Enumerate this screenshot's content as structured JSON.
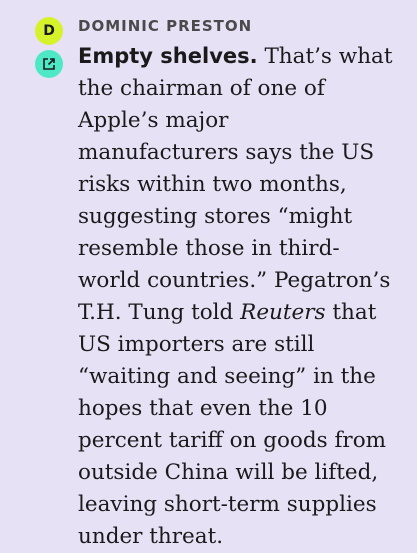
{
  "author": {
    "initial": "D",
    "name": "DOMINIC PRESTON"
  },
  "icons": {
    "author": "author-initial-badge",
    "link": "external-link-icon"
  },
  "colors": {
    "background": "#e6e1f5",
    "author_badge": "#d6f22a",
    "link_badge": "#4fe8c6"
  },
  "post": {
    "lead": "Empty shelves.",
    "line1_rest": " That’s what",
    "line2": "the chairman of one of",
    "line3": "Apple’s major",
    "line4": "manufacturers says the US",
    "line5": "risks within two months,",
    "line6": "suggesting stores “might",
    "line7": "resemble those in third-",
    "line8": "world countries.” Pegatron’s",
    "line9_pre": "T.H. Tung told ",
    "publication": "Reuters",
    "line9_post": " that",
    "line10": "US importers are still",
    "line11": "“waiting and seeing” in the",
    "line12": "hopes that even the 10",
    "line13": "percent tariff on goods from",
    "line14": "outside China will be lifted,",
    "line15": "leaving short-term supplies",
    "line16": "under threat."
  }
}
